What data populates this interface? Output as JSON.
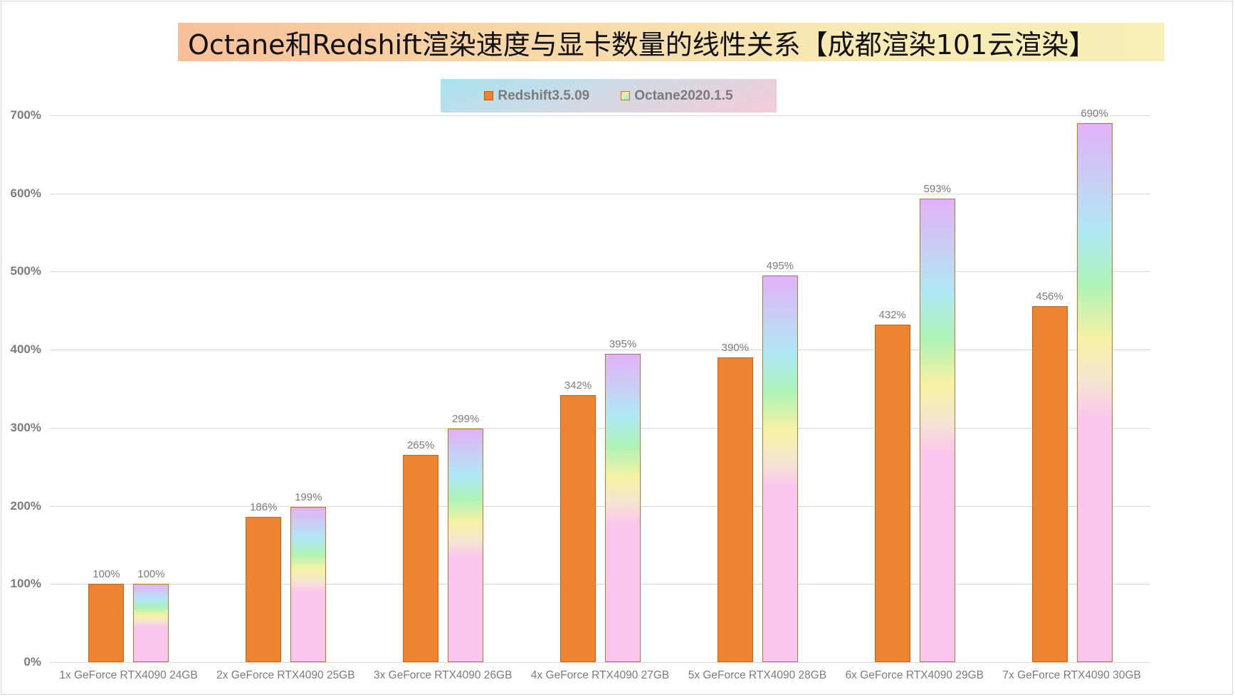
{
  "title": "Octane和Redshift渲染速度与显卡数量的线性关系【成都渲染101云渲染】",
  "legend": {
    "items": [
      {
        "label": "Redshift3.5.09",
        "color": "#ED8230",
        "key": "rs"
      },
      {
        "label": "Octane2020.1.5",
        "color": "rainbow-gradient",
        "key": "oc"
      }
    ]
  },
  "colors": {
    "redshift": "#ED8230",
    "octane_gradient": [
      "#FBC6EE",
      "#F6F2A4",
      "#AEF3B8",
      "#B0E8F5",
      "#C9CDF5",
      "#E2B2F9"
    ],
    "grid": "#D9D9D9",
    "axis_text": "#7B7B7B"
  },
  "chart_data": {
    "type": "bar",
    "title": "Octane和Redshift渲染速度与显卡数量的线性关系【成都渲染101云渲染】",
    "xlabel": "",
    "ylabel": "",
    "ylim": [
      0,
      700
    ],
    "yticks": [
      "0%",
      "100%",
      "200%",
      "300%",
      "400%",
      "500%",
      "600%",
      "700%"
    ],
    "grid": true,
    "legend_position": "top",
    "categories": [
      "1x GeForce RTX4090 24GB",
      "2x GeForce RTX4090 25GB",
      "3x GeForce RTX4090 26GB",
      "4x GeForce RTX4090 27GB",
      "5x GeForce RTX4090 28GB",
      "6x GeForce RTX4090 29GB",
      "7x GeForce RTX4090 30GB"
    ],
    "series": [
      {
        "name": "Redshift3.5.09",
        "values": [
          100,
          186,
          265,
          342,
          390,
          432,
          456
        ],
        "labels": [
          "100%",
          "186%",
          "265%",
          "342%",
          "390%",
          "432%",
          "456%"
        ]
      },
      {
        "name": "Octane2020.1.5",
        "values": [
          100,
          199,
          299,
          395,
          495,
          593,
          690
        ],
        "labels": [
          "100%",
          "199%",
          "299%",
          "395%",
          "495%",
          "593%",
          "690%"
        ]
      }
    ]
  }
}
